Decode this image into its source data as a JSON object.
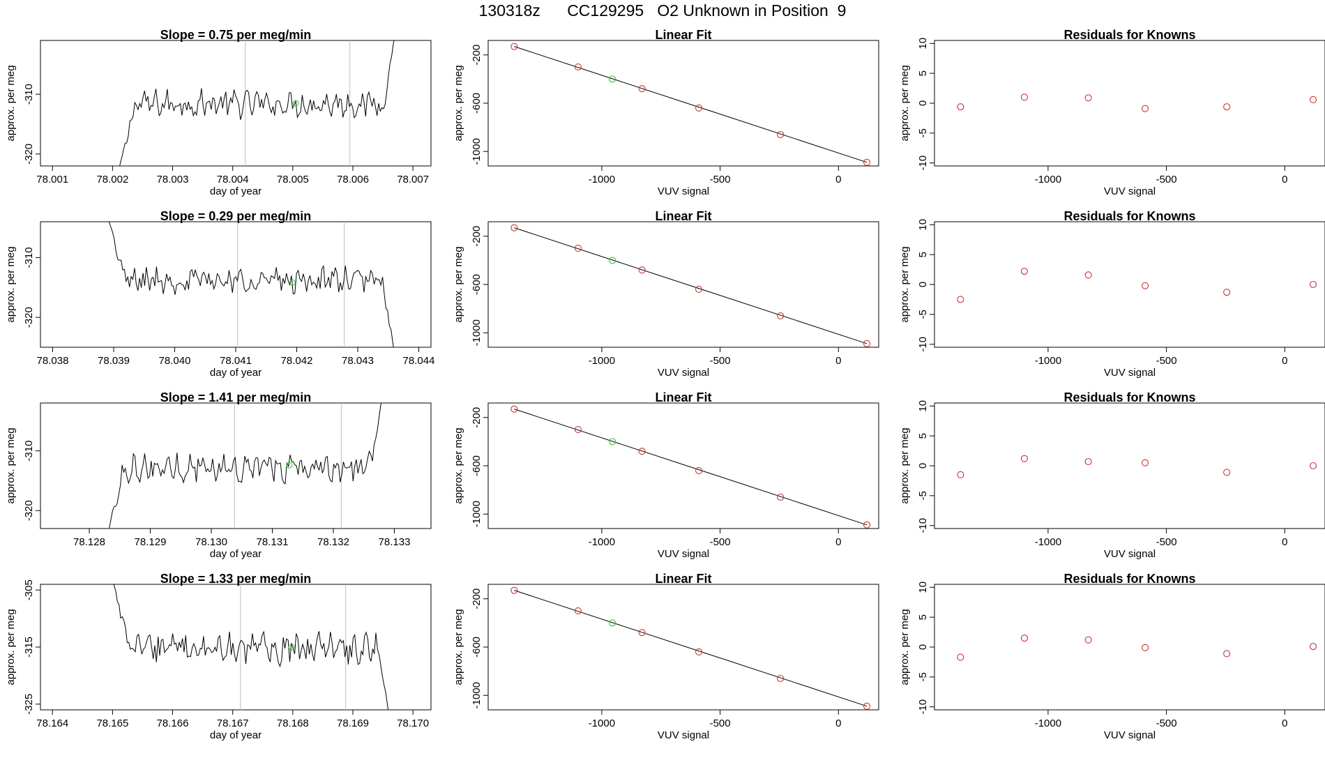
{
  "figure": {
    "title": "130318z      CC129295   O2 Unknown in Position  9"
  },
  "chart_data": [
    {
      "type": "line",
      "title": "Slope =  0.75  per meg/min",
      "xlabel": "day of year",
      "ylabel": "approx. per meg",
      "xlim": [
        78.0008,
        78.0073
      ],
      "ylim": [
        -322,
        -301
      ],
      "xticks": [
        "78.001",
        "78.002",
        "78.003",
        "78.004",
        "78.005",
        "78.006",
        "78.007"
      ],
      "xtick_values": [
        78.001,
        78.002,
        78.003,
        78.004,
        78.005,
        78.006,
        78.007
      ],
      "yticks": [
        "-320",
        "-310"
      ],
      "ytick_values": [
        -320,
        -310
      ],
      "vlines": [
        78.00421,
        78.00595
      ],
      "trace": {
        "x_start": 78.0021,
        "x_end": 78.0067,
        "mean": -311.6,
        "noise": 1.8,
        "start_from": -323,
        "end_to": -300
      },
      "marker": {
        "x": 78.00505,
        "y": -311.5,
        "color": "#22cc22"
      }
    },
    {
      "type": "scatter",
      "title": "Linear Fit",
      "xlabel": "VUV signal",
      "ylabel": "approx. per meg",
      "xlim": [
        -1480,
        170
      ],
      "ylim": [
        -1120,
        -80
      ],
      "xticks": [
        "-1000",
        "-500",
        "0"
      ],
      "xtick_values": [
        -1000,
        -500,
        0
      ],
      "yticks": [
        "-200",
        "-600",
        "-1000"
      ],
      "ytick_values": [
        -200,
        -600,
        -1000
      ],
      "line": [
        [
          -1370,
          -130
        ],
        [
          120,
          -1090
        ]
      ],
      "points": [
        {
          "x": -1370,
          "y": -130,
          "color": "#cc3333"
        },
        {
          "x": -1100,
          "y": -300,
          "color": "#cc3333"
        },
        {
          "x": -955,
          "y": -400,
          "color": "#22cc22"
        },
        {
          "x": -830,
          "y": -480,
          "color": "#cc3333"
        },
        {
          "x": -590,
          "y": -640,
          "color": "#cc3333"
        },
        {
          "x": -245,
          "y": -860,
          "color": "#cc3333"
        },
        {
          "x": 120,
          "y": -1090,
          "color": "#cc3333"
        }
      ]
    },
    {
      "type": "scatter",
      "title": "Residuals for Knowns",
      "xlabel": "VUV signal",
      "ylabel": "approx. per meg",
      "xlim": [
        -1480,
        170
      ],
      "ylim": [
        -10.5,
        10.5
      ],
      "xticks": [
        "-1000",
        "-500",
        "0"
      ],
      "xtick_values": [
        -1000,
        -500,
        0
      ],
      "yticks": [
        "-10",
        "-5",
        "0",
        "5",
        "10"
      ],
      "ytick_values": [
        -10,
        -5,
        0,
        5,
        10
      ],
      "points": [
        {
          "x": -1370,
          "y": -0.6,
          "color": "#cc3333"
        },
        {
          "x": -1100,
          "y": 1.0,
          "color": "#cc3333"
        },
        {
          "x": -830,
          "y": 0.9,
          "color": "#cc3333"
        },
        {
          "x": -590,
          "y": -0.9,
          "color": "#cc3333"
        },
        {
          "x": -245,
          "y": -0.6,
          "color": "#cc3333"
        },
        {
          "x": 120,
          "y": 0.6,
          "color": "#cc3333"
        }
      ]
    },
    {
      "type": "line",
      "title": "Slope =  0.29  per meg/min",
      "xlabel": "day of year",
      "ylabel": "approx. per meg",
      "xlim": [
        78.0378,
        78.0442
      ],
      "ylim": [
        -325,
        -304
      ],
      "xticks": [
        "78.038",
        "78.039",
        "78.040",
        "78.041",
        "78.042",
        "78.043",
        "78.044"
      ],
      "xtick_values": [
        78.038,
        78.039,
        78.04,
        78.041,
        78.042,
        78.043,
        78.044
      ],
      "yticks": [
        "-320",
        "-310"
      ],
      "ytick_values": [
        -320,
        -310
      ],
      "vlines": [
        78.04103,
        78.04278
      ],
      "trace": {
        "x_start": 78.0389,
        "x_end": 78.0436,
        "mean": -313.8,
        "noise": 1.7,
        "start_from": -303,
        "end_to": -326
      },
      "marker": {
        "x": 78.04193,
        "y": -314.2,
        "color": "#22cc22"
      }
    },
    {
      "type": "scatter",
      "title": "Linear Fit",
      "xlabel": "VUV signal",
      "ylabel": "approx. per meg",
      "xlim": [
        -1480,
        170
      ],
      "ylim": [
        -1120,
        -80
      ],
      "xticks": [
        "-1000",
        "-500",
        "0"
      ],
      "xtick_values": [
        -1000,
        -500,
        0
      ],
      "yticks": [
        "-200",
        "-600",
        "-1000"
      ],
      "ytick_values": [
        -200,
        -600,
        -1000
      ],
      "line": [
        [
          -1370,
          -130
        ],
        [
          120,
          -1090
        ]
      ],
      "points": [
        {
          "x": -1370,
          "y": -130,
          "color": "#cc3333"
        },
        {
          "x": -1100,
          "y": -300,
          "color": "#cc3333"
        },
        {
          "x": -955,
          "y": -400,
          "color": "#22cc22"
        },
        {
          "x": -830,
          "y": -480,
          "color": "#cc3333"
        },
        {
          "x": -590,
          "y": -640,
          "color": "#cc3333"
        },
        {
          "x": -245,
          "y": -860,
          "color": "#cc3333"
        },
        {
          "x": 120,
          "y": -1090,
          "color": "#cc3333"
        }
      ]
    },
    {
      "type": "scatter",
      "title": "Residuals for Knowns",
      "xlabel": "VUV signal",
      "ylabel": "approx. per meg",
      "xlim": [
        -1480,
        170
      ],
      "ylim": [
        -10.5,
        10.5
      ],
      "xticks": [
        "-1000",
        "-500",
        "0"
      ],
      "xtick_values": [
        -1000,
        -500,
        0
      ],
      "yticks": [
        "-10",
        "-5",
        "0",
        "5",
        "10"
      ],
      "ytick_values": [
        -10,
        -5,
        0,
        5,
        10
      ],
      "points": [
        {
          "x": -1370,
          "y": -2.5,
          "color": "#cc3333"
        },
        {
          "x": -1100,
          "y": 2.2,
          "color": "#cc3333"
        },
        {
          "x": -830,
          "y": 1.6,
          "color": "#cc3333"
        },
        {
          "x": -590,
          "y": -0.2,
          "color": "#cc3333"
        },
        {
          "x": -245,
          "y": -1.3,
          "color": "#cc3333"
        },
        {
          "x": 120,
          "y": 0.0,
          "color": "#cc3333"
        }
      ]
    },
    {
      "type": "line",
      "title": "Slope =  1.41  per meg/min",
      "xlabel": "day of year",
      "ylabel": "approx. per meg",
      "xlim": [
        78.1272,
        78.1336
      ],
      "ylim": [
        -323,
        -302
      ],
      "xticks": [
        "78.128",
        "78.129",
        "78.130",
        "78.131",
        "78.132",
        "78.133"
      ],
      "xtick_values": [
        78.128,
        78.129,
        78.13,
        78.131,
        78.132,
        78.133
      ],
      "yticks": [
        "-320",
        "-310"
      ],
      "ytick_values": [
        -320,
        -310
      ],
      "vlines": [
        78.13038,
        78.13213
      ],
      "trace": {
        "x_start": 78.1283,
        "x_end": 78.1328,
        "mean": -312.8,
        "noise": 1.9,
        "start_from": -324,
        "end_to": -301
      },
      "marker": {
        "x": 78.13128,
        "y": -312.4,
        "color": "#22cc22"
      }
    },
    {
      "type": "scatter",
      "title": "Linear Fit",
      "xlabel": "VUV signal",
      "ylabel": "approx. per meg",
      "xlim": [
        -1480,
        170
      ],
      "ylim": [
        -1120,
        -80
      ],
      "xticks": [
        "-1000",
        "-500",
        "0"
      ],
      "xtick_values": [
        -1000,
        -500,
        0
      ],
      "yticks": [
        "-200",
        "-600",
        "-1000"
      ],
      "ytick_values": [
        -200,
        -600,
        -1000
      ],
      "line": [
        [
          -1370,
          -130
        ],
        [
          120,
          -1090
        ]
      ],
      "points": [
        {
          "x": -1370,
          "y": -130,
          "color": "#cc3333"
        },
        {
          "x": -1100,
          "y": -300,
          "color": "#cc3333"
        },
        {
          "x": -955,
          "y": -400,
          "color": "#22cc22"
        },
        {
          "x": -830,
          "y": -480,
          "color": "#cc3333"
        },
        {
          "x": -590,
          "y": -640,
          "color": "#cc3333"
        },
        {
          "x": -245,
          "y": -860,
          "color": "#cc3333"
        },
        {
          "x": 120,
          "y": -1090,
          "color": "#cc3333"
        }
      ]
    },
    {
      "type": "scatter",
      "title": "Residuals for Knowns",
      "xlabel": "VUV signal",
      "ylabel": "approx. per meg",
      "xlim": [
        -1480,
        170
      ],
      "ylim": [
        -10.5,
        10.5
      ],
      "xticks": [
        "-1000",
        "-500",
        "0"
      ],
      "xtick_values": [
        -1000,
        -500,
        0
      ],
      "yticks": [
        "-10",
        "-5",
        "0",
        "5",
        "10"
      ],
      "ytick_values": [
        -10,
        -5,
        0,
        5,
        10
      ],
      "points": [
        {
          "x": -1370,
          "y": -1.5,
          "color": "#cc3333"
        },
        {
          "x": -1100,
          "y": 1.2,
          "color": "#cc3333"
        },
        {
          "x": -830,
          "y": 0.7,
          "color": "#cc3333"
        },
        {
          "x": -590,
          "y": 0.5,
          "color": "#cc3333"
        },
        {
          "x": -245,
          "y": -1.1,
          "color": "#cc3333"
        },
        {
          "x": 120,
          "y": 0.0,
          "color": "#cc3333"
        }
      ]
    },
    {
      "type": "line",
      "title": "Slope =  1.33  per meg/min",
      "xlabel": "day of year",
      "ylabel": "approx. per meg",
      "xlim": [
        78.1638,
        78.1703
      ],
      "ylim": [
        -326,
        -304
      ],
      "xticks": [
        "78.164",
        "78.165",
        "78.166",
        "78.167",
        "78.168",
        "78.169",
        "78.170"
      ],
      "xtick_values": [
        78.164,
        78.165,
        78.166,
        78.167,
        78.168,
        78.169,
        78.17
      ],
      "yticks": [
        "-325",
        "-315",
        "-305"
      ],
      "ytick_values": [
        -325,
        -315,
        -305
      ],
      "vlines": [
        78.16713,
        78.16888
      ],
      "trace": {
        "x_start": 78.165,
        "x_end": 78.1696,
        "mean": -315.3,
        "noise": 2.1,
        "start_from": -303,
        "end_to": -327
      },
      "marker": {
        "x": 78.16798,
        "y": -315.0,
        "color": "#22cc22"
      }
    },
    {
      "type": "scatter",
      "title": "Linear Fit",
      "xlabel": "VUV signal",
      "ylabel": "approx. per meg",
      "xlim": [
        -1480,
        170
      ],
      "ylim": [
        -1120,
        -80
      ],
      "xticks": [
        "-1000",
        "-500",
        "0"
      ],
      "xtick_values": [
        -1000,
        -500,
        0
      ],
      "yticks": [
        "-200",
        "-600",
        "-1000"
      ],
      "ytick_values": [
        -200,
        -600,
        -1000
      ],
      "line": [
        [
          -1370,
          -130
        ],
        [
          120,
          -1090
        ]
      ],
      "points": [
        {
          "x": -1370,
          "y": -130,
          "color": "#cc3333"
        },
        {
          "x": -1100,
          "y": -300,
          "color": "#cc3333"
        },
        {
          "x": -955,
          "y": -400,
          "color": "#22cc22"
        },
        {
          "x": -830,
          "y": -480,
          "color": "#cc3333"
        },
        {
          "x": -590,
          "y": -640,
          "color": "#cc3333"
        },
        {
          "x": -245,
          "y": -860,
          "color": "#cc3333"
        },
        {
          "x": 120,
          "y": -1090,
          "color": "#cc3333"
        }
      ]
    },
    {
      "type": "scatter",
      "title": "Residuals for Knowns",
      "xlabel": "VUV signal",
      "ylabel": "approx. per meg",
      "xlim": [
        -1480,
        170
      ],
      "ylim": [
        -10.5,
        10.5
      ],
      "xticks": [
        "-1000",
        "-500",
        "0"
      ],
      "xtick_values": [
        -1000,
        -500,
        0
      ],
      "yticks": [
        "-10",
        "-5",
        "0",
        "5",
        "10"
      ],
      "ytick_values": [
        -10,
        -5,
        0,
        5,
        10
      ],
      "points": [
        {
          "x": -1370,
          "y": -1.7,
          "color": "#cc3333"
        },
        {
          "x": -1100,
          "y": 1.5,
          "color": "#cc3333"
        },
        {
          "x": -830,
          "y": 1.2,
          "color": "#cc3333"
        },
        {
          "x": -590,
          "y": -0.1,
          "color": "#cc3333"
        },
        {
          "x": -245,
          "y": -1.1,
          "color": "#cc3333"
        },
        {
          "x": 120,
          "y": 0.1,
          "color": "#cc3333"
        }
      ]
    }
  ]
}
